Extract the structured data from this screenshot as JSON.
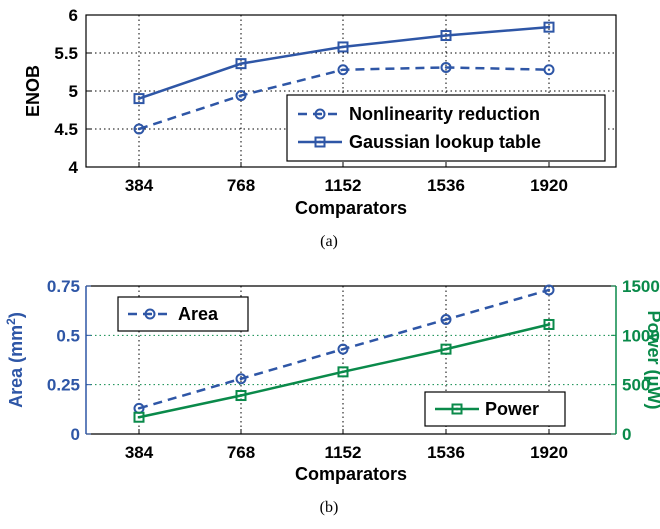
{
  "chart_data": [
    {
      "type": "line",
      "panel_caption": "(a)",
      "xlabel": "Comparators",
      "ylabel": "ENOB",
      "categories": [
        "384",
        "768",
        "1152",
        "1536",
        "1920"
      ],
      "ylim": [
        4,
        6
      ],
      "yticks": [
        "4",
        "4.5",
        "5",
        "5.5",
        "6"
      ],
      "grid": true,
      "legend_position": "bottom-right",
      "series": [
        {
          "name": "Nonlinearity reduction",
          "values": [
            4.5,
            4.94,
            5.28,
            5.31,
            5.28
          ],
          "style": "dashed",
          "marker": "circle",
          "color": "#2e56a6"
        },
        {
          "name": "Gaussian lookup table",
          "values": [
            4.9,
            5.36,
            5.58,
            5.73,
            5.84
          ],
          "style": "solid",
          "marker": "square",
          "color": "#2e56a6"
        }
      ]
    },
    {
      "type": "line",
      "panel_caption": "(b)",
      "xlabel": "Comparators",
      "ylabel_left": "Area (mm",
      "ylabel_left_sup": "2",
      "ylabel_left_close": ")",
      "ylabel_right": "Power (μW)",
      "categories": [
        "384",
        "768",
        "1152",
        "1536",
        "1920"
      ],
      "ylim_left": [
        0,
        0.75
      ],
      "yticks_left": [
        "0",
        "0.25",
        "0.5",
        "0.75"
      ],
      "ylim_right": [
        0,
        1500
      ],
      "yticks_right": [
        "0",
        "500",
        "1000",
        "1500"
      ],
      "grid": true,
      "left_color": "#2e56a6",
      "right_color": "#0a8a4a",
      "series": [
        {
          "name": "Area",
          "axis": "left",
          "values": [
            0.13,
            0.28,
            0.43,
            0.58,
            0.73
          ],
          "style": "dashed",
          "marker": "circle",
          "color": "#2e56a6",
          "legend_position": "top-left"
        },
        {
          "name": "Power",
          "axis": "right",
          "values": [
            170,
            390,
            630,
            860,
            1110
          ],
          "style": "solid",
          "marker": "square",
          "color": "#0a8a4a",
          "legend_position": "bottom-right"
        }
      ]
    }
  ]
}
